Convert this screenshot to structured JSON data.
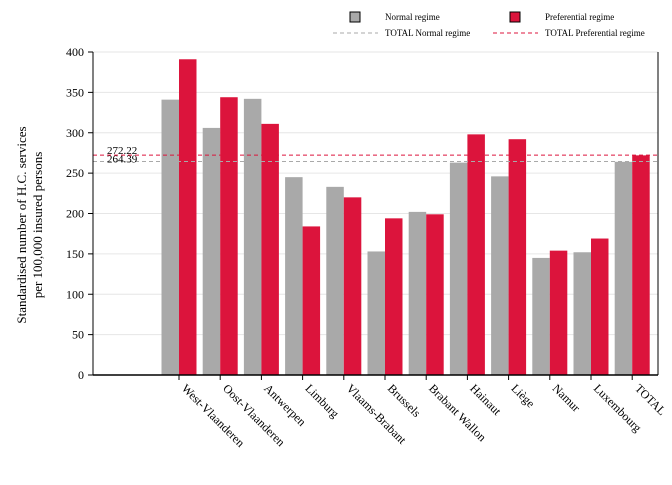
{
  "chart_data": {
    "type": "bar",
    "title": "",
    "xlabel": "",
    "ylabel": "Standardised number of H.C. services",
    "ylabel_line2": "per 100,000 insured persons",
    "ylim": [
      0,
      400
    ],
    "yticks": [
      0,
      50,
      100,
      150,
      200,
      250,
      300,
      350,
      400
    ],
    "grid": true,
    "legend_position": "top-right",
    "categories": [
      "West-Vlaanderen",
      "Oost-Vlaanderen",
      "Antwerpen",
      "Limburg",
      "Vlaams-Brabant",
      "Brussels",
      "Brabant Wallon",
      "Hainaut",
      "Liège",
      "Namur",
      "Luxembourg",
      "TOTAL"
    ],
    "series": [
      {
        "name": "Normal regime",
        "color": "#a9a9a9",
        "values": [
          341,
          306,
          342,
          245,
          233,
          153,
          202,
          263,
          246,
          145,
          152,
          264
        ]
      },
      {
        "name": "Preferential regime",
        "color": "#dc143c",
        "values": [
          391,
          344,
          311,
          184,
          220,
          194,
          199,
          298,
          292,
          154,
          169,
          272
        ]
      }
    ],
    "reference_lines": [
      {
        "name": "TOTAL Normal regime",
        "value": 264.39,
        "label": "264.39",
        "color": "#a9a9a9"
      },
      {
        "name": "TOTAL Preferential regime",
        "value": 272.22,
        "label": "272.22",
        "color": "#dc143c"
      }
    ]
  }
}
